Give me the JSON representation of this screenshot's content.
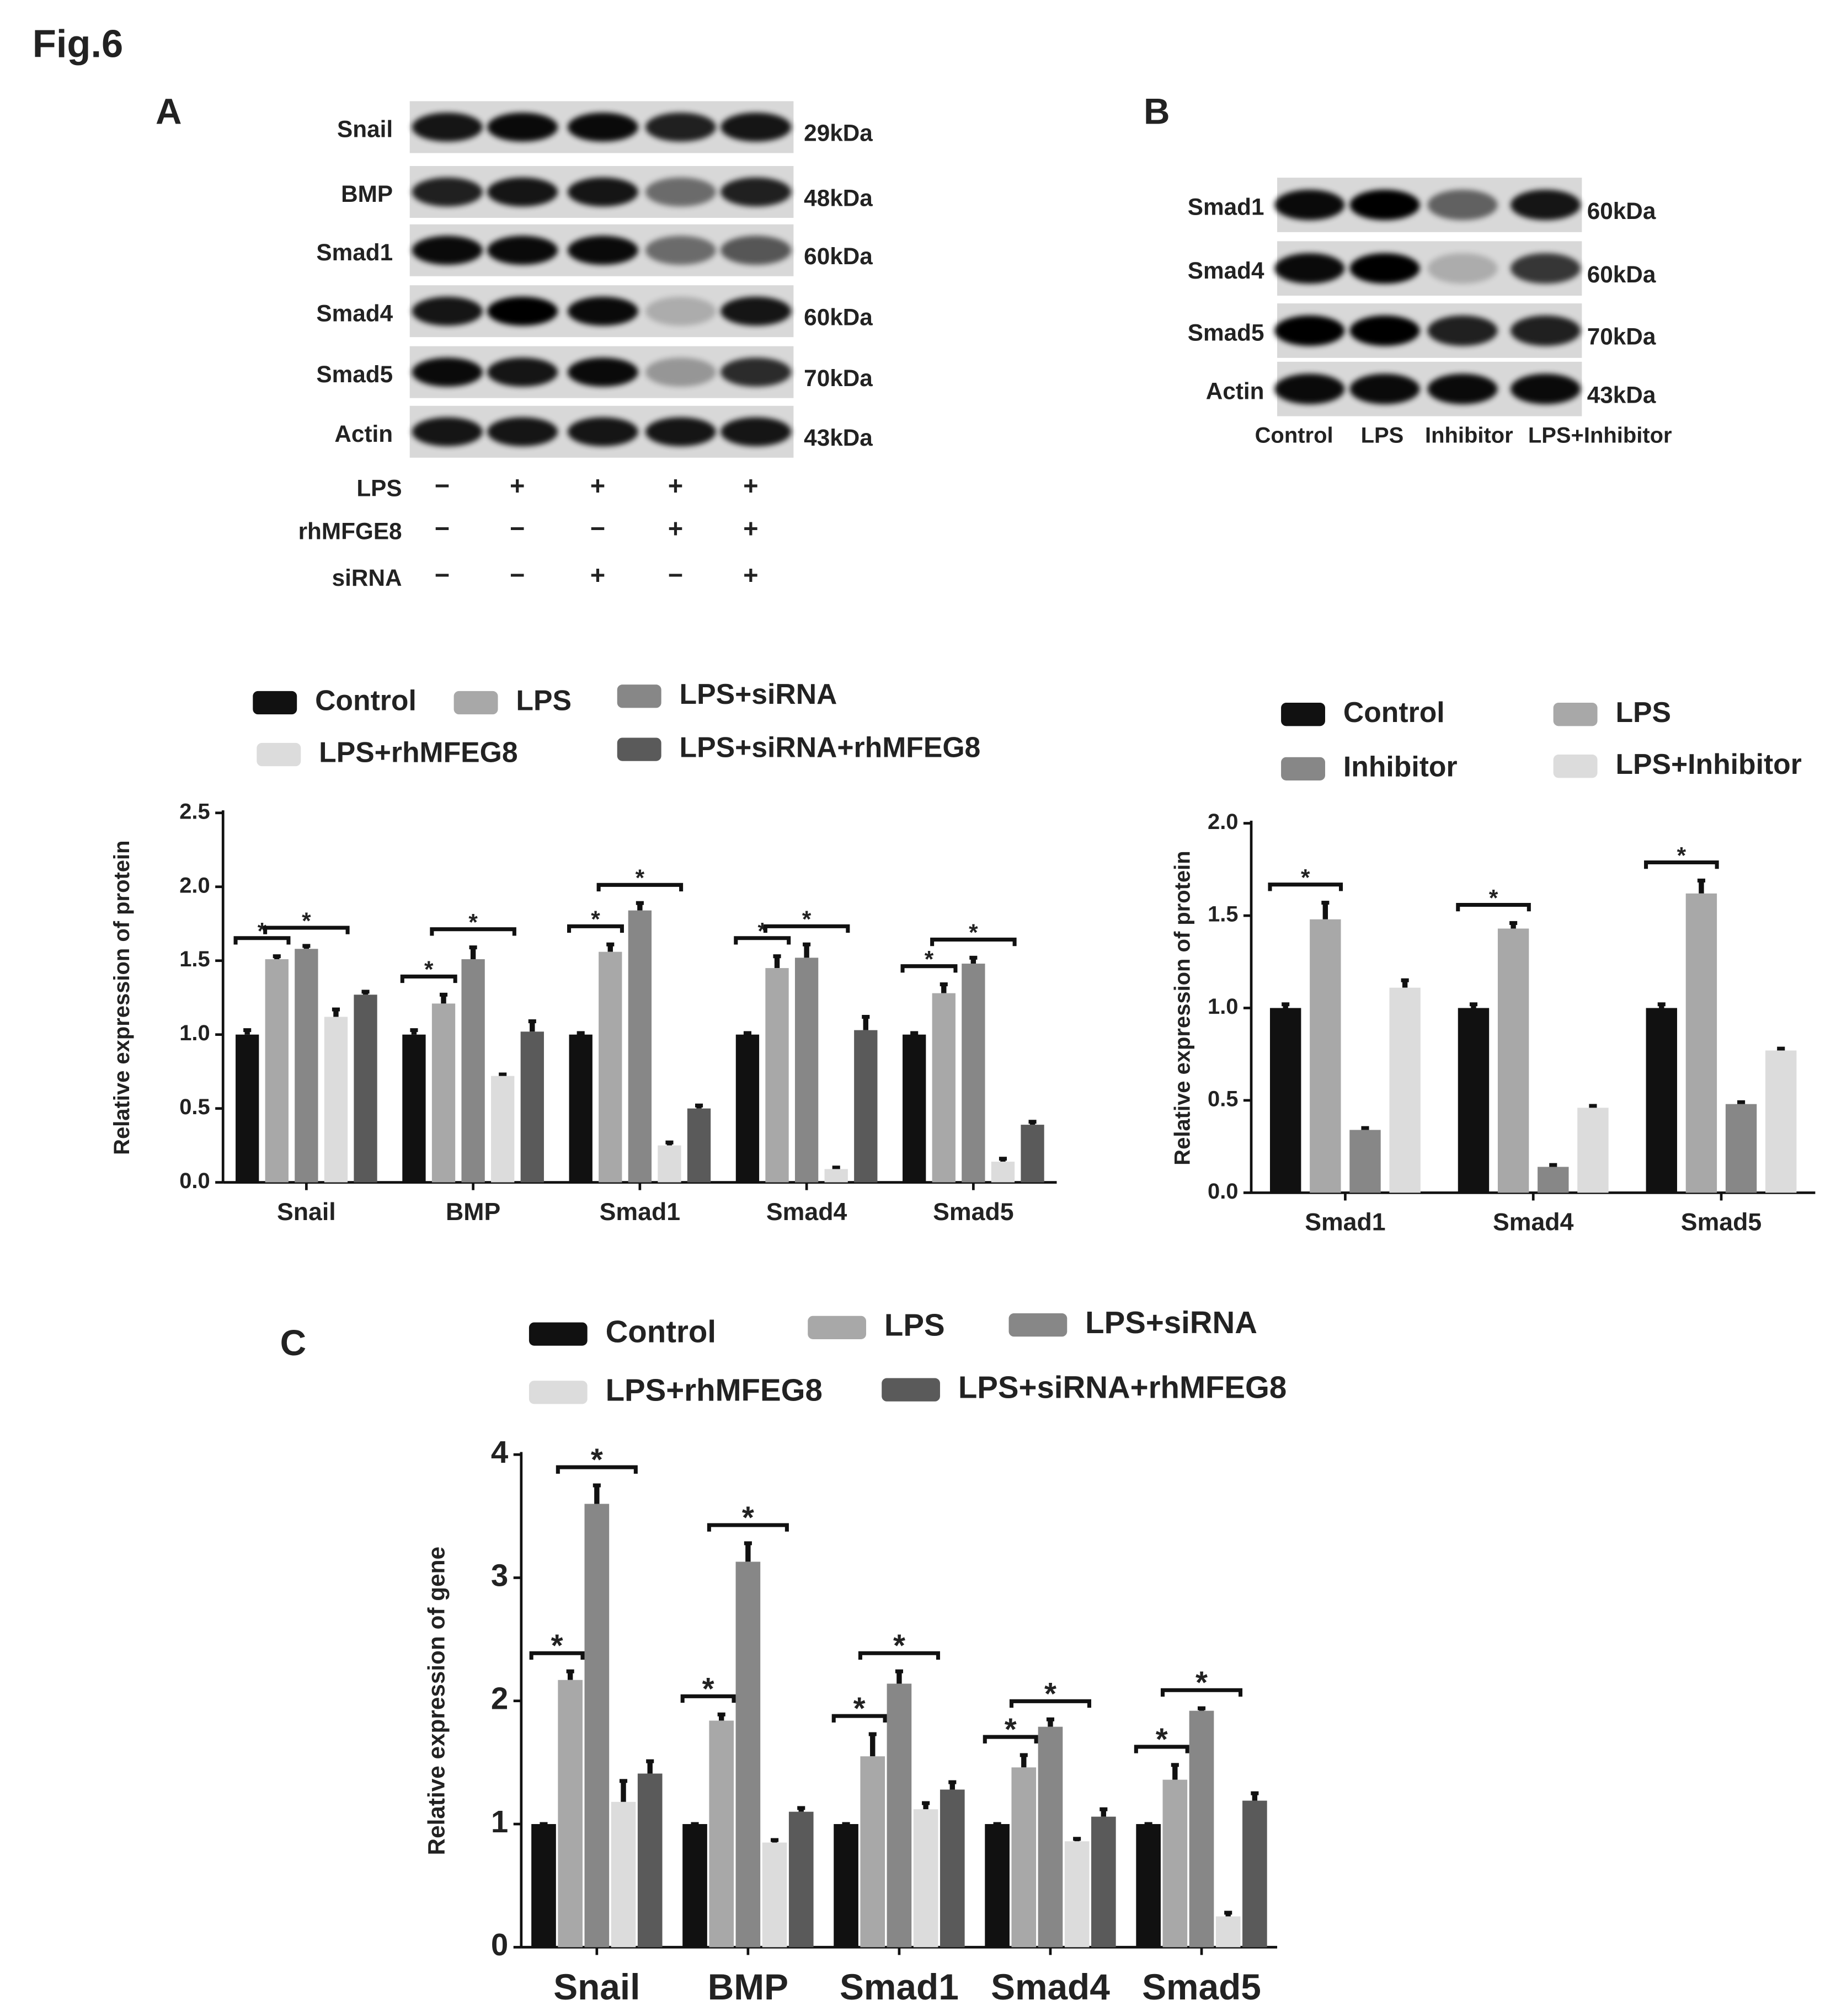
{
  "figure_title": "Fig.6",
  "panel_labels": [
    "A",
    "B",
    "C"
  ],
  "blot_A": {
    "rows": [
      {
        "protein": "Snail",
        "size": "29kDa"
      },
      {
        "protein": "BMP",
        "size": "48kDa"
      },
      {
        "protein": "Smad1",
        "size": "60kDa"
      },
      {
        "protein": "Smad4",
        "size": "60kDa"
      },
      {
        "protein": "Smad5",
        "size": "70kDa"
      },
      {
        "protein": "Actin",
        "size": "43kDa"
      }
    ],
    "treatments": [
      {
        "name": "LPS",
        "states": [
          "−",
          "+",
          "+",
          "+",
          "+"
        ]
      },
      {
        "name": "rhMFGE8",
        "states": [
          "−",
          "−",
          "−",
          "+",
          "+"
        ]
      },
      {
        "name": "siRNA",
        "states": [
          "−",
          "−",
          "+",
          "−",
          "+"
        ]
      }
    ]
  },
  "blot_B": {
    "rows": [
      {
        "protein": "Smad1",
        "size": "60kDa"
      },
      {
        "protein": "Smad4",
        "size": "60kDa"
      },
      {
        "protein": "Smad5",
        "size": "70kDa"
      },
      {
        "protein": "Actin",
        "size": "43kDa"
      }
    ],
    "lanes": [
      "Control",
      "LPS",
      "Inhibitor",
      "LPS+Inhibitor"
    ]
  },
  "chart_data": [
    {
      "type": "bar",
      "y_label": "Relative expression of protein",
      "categories": [
        "Snail",
        "BMP",
        "Smad1",
        "Smad4",
        "Smad5"
      ],
      "series": [
        {
          "name": "Control",
          "color": "#111111",
          "values": [
            1.0,
            1.0,
            1.0,
            1.0,
            1.0
          ],
          "errors": [
            0.03,
            0.03,
            0.01,
            0.01,
            0.01
          ]
        },
        {
          "name": "LPS",
          "color": "#a8a8a8",
          "values": [
            1.51,
            1.21,
            1.56,
            1.45,
            1.28
          ],
          "errors": [
            0.02,
            0.06,
            0.05,
            0.08,
            0.06
          ]
        },
        {
          "name": "LPS+siRNA",
          "color": "#878787",
          "values": [
            1.58,
            1.51,
            1.84,
            1.52,
            1.48
          ],
          "errors": [
            0.02,
            0.08,
            0.05,
            0.09,
            0.04
          ]
        },
        {
          "name": "LPS+rhMFEG8",
          "color": "#dcdcdc",
          "values": [
            1.12,
            0.72,
            0.25,
            0.09,
            0.14
          ],
          "errors": [
            0.05,
            0.01,
            0.02,
            0.01,
            0.02
          ]
        },
        {
          "name": "LPS+siRNA+rhMFEG8",
          "color": "#5a5a5a",
          "values": [
            1.27,
            1.02,
            0.5,
            1.03,
            0.39
          ],
          "errors": [
            0.02,
            0.07,
            0.02,
            0.09,
            0.02
          ]
        }
      ],
      "ylim": [
        0,
        2.5
      ],
      "yticks": [
        {
          "value": 0,
          "label": "0.0"
        },
        0.5,
        {
          "value": 1,
          "label": "1.0"
        },
        1.5,
        {
          "value": 2,
          "label": "2.0"
        },
        2.5
      ],
      "significance": [
        {
          "category": 0,
          "pair": [
            0,
            1
          ],
          "label": "*"
        },
        {
          "category": 0,
          "pair": [
            1,
            3
          ],
          "label": "*"
        },
        {
          "category": 1,
          "pair": [
            0,
            1
          ],
          "label": "*"
        },
        {
          "category": 1,
          "pair": [
            1,
            3
          ],
          "label": "*"
        },
        {
          "category": 2,
          "pair": [
            0,
            1
          ],
          "label": "*"
        },
        {
          "category": 2,
          "pair": [
            1,
            3
          ],
          "label": "*"
        },
        {
          "category": 3,
          "pair": [
            0,
            1
          ],
          "label": "*"
        },
        {
          "category": 3,
          "pair": [
            1,
            3
          ],
          "label": "*"
        },
        {
          "category": 4,
          "pair": [
            0,
            1
          ],
          "label": "*"
        },
        {
          "category": 4,
          "pair": [
            1,
            3
          ],
          "label": "*"
        }
      ]
    },
    {
      "type": "bar",
      "y_label": "Relative expression of protein",
      "categories": [
        "Smad1",
        "Smad4",
        "Smad5"
      ],
      "series": [
        {
          "name": "Control",
          "color": "#111111",
          "values": [
            1.0,
            1.0,
            1.0
          ],
          "errors": [
            0.02,
            0.02,
            0.02
          ]
        },
        {
          "name": "LPS",
          "color": "#a8a8a8",
          "values": [
            1.48,
            1.43,
            1.62
          ],
          "errors": [
            0.09,
            0.03,
            0.07
          ]
        },
        {
          "name": "Inhibitor",
          "color": "#878787",
          "values": [
            0.34,
            0.14,
            0.48
          ],
          "errors": [
            0.01,
            0.01,
            0.01
          ]
        },
        {
          "name": "LPS+Inhibitor",
          "color": "#dcdcdc",
          "values": [
            1.11,
            0.46,
            0.77
          ],
          "errors": [
            0.04,
            0.01,
            0.01
          ]
        }
      ],
      "ylim": [
        0,
        2
      ],
      "yticks": [
        {
          "value": 0,
          "label": "0.0"
        },
        0.5,
        {
          "value": 1,
          "label": "1.0"
        },
        1.5,
        {
          "value": 2,
          "label": "2.0"
        }
      ],
      "significance": [
        {
          "category": 0,
          "pair": [
            0,
            1
          ],
          "label": "*"
        },
        {
          "category": 1,
          "pair": [
            0,
            1
          ],
          "label": "*"
        },
        {
          "category": 2,
          "pair": [
            0,
            1
          ],
          "label": "*"
        }
      ]
    },
    {
      "type": "bar",
      "y_label": "Relative expression of gene",
      "categories": [
        "Snail",
        "BMP",
        "Smad1",
        "Smad4",
        "Smad5"
      ],
      "series": [
        {
          "name": "Control",
          "color": "#111111",
          "values": [
            1,
            1,
            1,
            1,
            1
          ],
          "errors": [
            0,
            0,
            0,
            0,
            0
          ]
        },
        {
          "name": "LPS",
          "color": "#a8a8a8",
          "values": [
            2.17,
            1.84,
            1.55,
            1.46,
            1.36
          ],
          "errors": [
            0.07,
            0.05,
            0.18,
            0.1,
            0.12
          ]
        },
        {
          "name": "LPS+siRNA",
          "color": "#878787",
          "values": [
            3.6,
            3.13,
            2.14,
            1.79,
            1.92
          ],
          "errors": [
            0.15,
            0.15,
            0.1,
            0.06,
            0.02
          ]
        },
        {
          "name": "LPS+rhMFEG8",
          "color": "#dcdcdc",
          "values": [
            1.18,
            0.85,
            1.12,
            0.86,
            0.25
          ],
          "errors": [
            0.17,
            0.02,
            0.05,
            0.02,
            0.03
          ]
        },
        {
          "name": "LPS+siRNA+rhMFEG8",
          "color": "#5a5a5a",
          "values": [
            1.41,
            1.1,
            1.28,
            1.06,
            1.19
          ],
          "errors": [
            0.1,
            0.03,
            0.06,
            0.06,
            0.06
          ]
        }
      ],
      "ylim": [
        0,
        4
      ],
      "yticks": [
        0,
        1,
        2,
        3,
        4
      ],
      "significance": [
        {
          "category": 0,
          "pair": [
            0,
            1
          ],
          "label": "*"
        },
        {
          "category": 0,
          "pair": [
            1,
            3
          ],
          "label": "*"
        },
        {
          "category": 1,
          "pair": [
            0,
            1
          ],
          "label": "*"
        },
        {
          "category": 1,
          "pair": [
            1,
            3
          ],
          "label": "*"
        },
        {
          "category": 2,
          "pair": [
            0,
            1
          ],
          "label": "*"
        },
        {
          "category": 2,
          "pair": [
            1,
            3
          ],
          "label": "*"
        },
        {
          "category": 3,
          "pair": [
            0,
            1
          ],
          "label": "*"
        },
        {
          "category": 3,
          "pair": [
            1,
            3
          ],
          "label": "*"
        },
        {
          "category": 4,
          "pair": [
            0,
            1
          ],
          "label": "*"
        },
        {
          "category": 4,
          "pair": [
            1,
            3
          ],
          "label": "*"
        }
      ]
    }
  ]
}
